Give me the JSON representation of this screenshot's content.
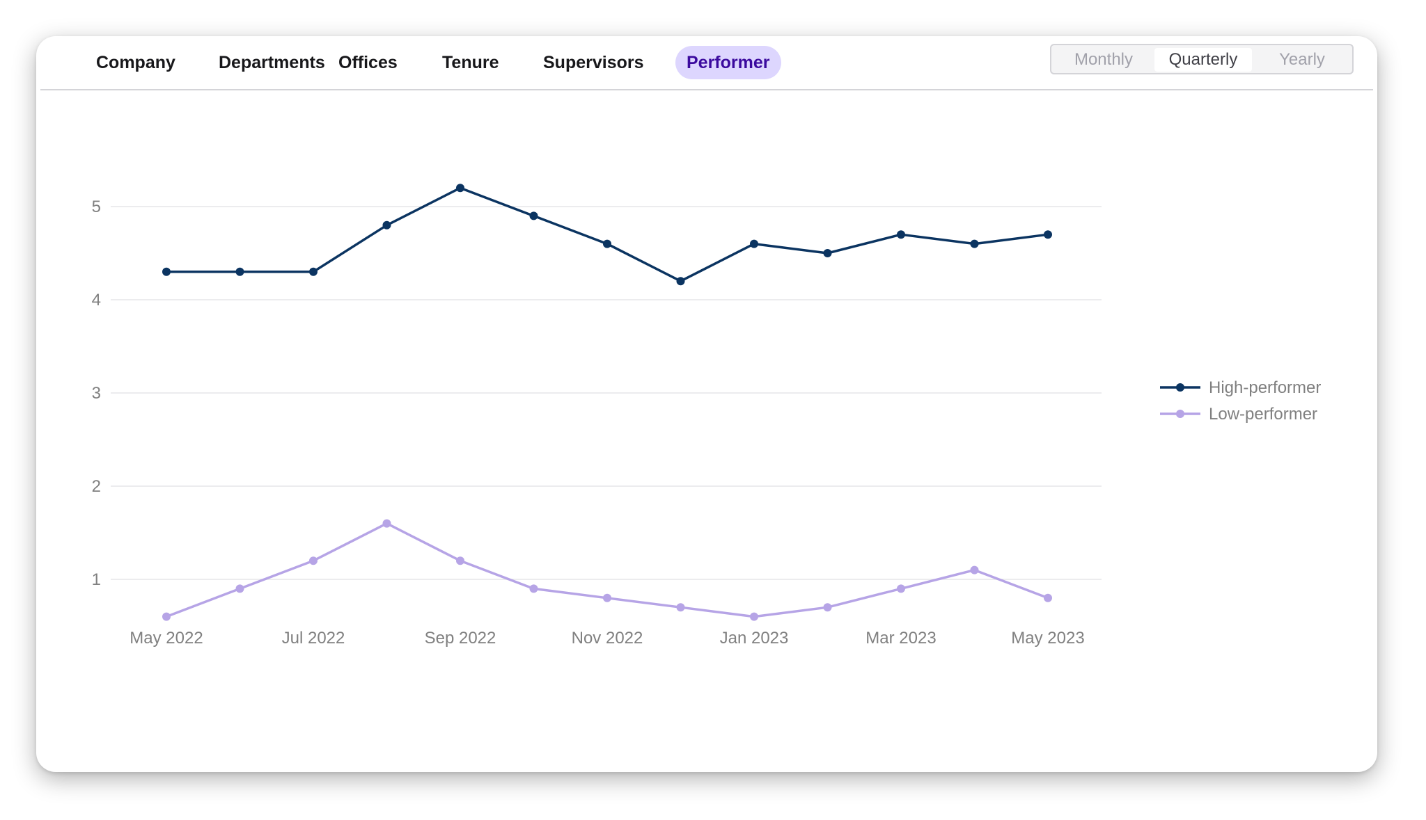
{
  "tabs": [
    {
      "label": "Company",
      "active": false
    },
    {
      "label": "Departments",
      "active": false
    },
    {
      "label": "Offices",
      "active": false
    },
    {
      "label": "Tenure",
      "active": false
    },
    {
      "label": "Supervisors",
      "active": false
    },
    {
      "label": "Performer",
      "active": true
    }
  ],
  "period_toggle": {
    "options": [
      "Monthly",
      "Quarterly",
      "Yearly"
    ],
    "selected": "Quarterly"
  },
  "colors": {
    "high": "#0b3461",
    "low": "#b6a4e6",
    "grid": "#e6e6e8",
    "axis_text": "#808080",
    "active_tab_bg": "#ddd6fe",
    "active_tab_text": "#3b0a9e"
  },
  "chart_data": {
    "type": "line",
    "title": "",
    "xlabel": "",
    "ylabel": "",
    "x": [
      "2022-05",
      "2022-06",
      "2022-07",
      "2022-08",
      "2022-09",
      "2022-10",
      "2022-11",
      "2022-12",
      "2023-01",
      "2023-02",
      "2023-03",
      "2023-04",
      "2023-05"
    ],
    "x_tick_labels": [
      "May 2022",
      "Jul 2022",
      "Sep 2022",
      "Nov 2022",
      "Jan 2023",
      "Mar 2023",
      "May 2023"
    ],
    "y_ticks": [
      1,
      2,
      3,
      4,
      5
    ],
    "ylim": [
      0.5,
      5.5
    ],
    "grid": true,
    "legend_position": "right",
    "series": [
      {
        "name": "High-performer",
        "values": [
          4.3,
          4.3,
          4.3,
          4.8,
          5.2,
          4.9,
          4.6,
          4.2,
          4.6,
          4.5,
          4.7,
          4.6,
          4.7
        ]
      },
      {
        "name": "Low-performer",
        "values": [
          0.6,
          0.9,
          1.2,
          1.6,
          1.2,
          0.9,
          0.8,
          0.7,
          0.6,
          0.7,
          0.9,
          1.1,
          0.8
        ]
      }
    ]
  }
}
